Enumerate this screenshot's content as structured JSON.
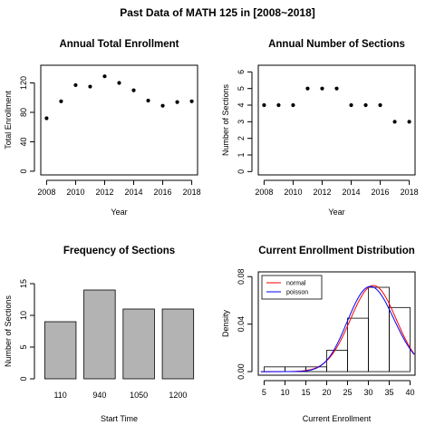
{
  "figure": {
    "title": "Past Data of MATH 125 in [2008~2018]"
  },
  "chart_data": [
    {
      "type": "scatter",
      "title": "Annual Total Enrollment",
      "xlabel": "Year",
      "ylabel": "Total Enrollment",
      "x": [
        2008,
        2009,
        2010,
        2011,
        2012,
        2013,
        2014,
        2015,
        2016,
        2017,
        2018
      ],
      "y": [
        72,
        95,
        117,
        115,
        129,
        120,
        110,
        96,
        89,
        94,
        95
      ],
      "xlim": [
        2007.6,
        2018.4
      ],
      "ylim": [
        -5,
        144
      ],
      "xticks": [
        2008,
        2010,
        2012,
        2014,
        2016,
        2018
      ],
      "yticks": [
        0,
        40,
        80,
        120
      ],
      "ytick_labels": [
        "0",
        "40",
        "80",
        "120"
      ],
      "grid": false
    },
    {
      "type": "scatter",
      "title": "Annual Number of Sections",
      "xlabel": "Year",
      "ylabel": "Number of Sections",
      "x": [
        2008,
        2009,
        2010,
        2011,
        2012,
        2013,
        2014,
        2015,
        2016,
        2017,
        2018
      ],
      "y": [
        4,
        4,
        4,
        5,
        5,
        5,
        4,
        4,
        4,
        3,
        3
      ],
      "xlim": [
        2007.6,
        2018.4
      ],
      "ylim": [
        -0.2,
        6.4
      ],
      "xticks": [
        2008,
        2010,
        2012,
        2014,
        2016,
        2018
      ],
      "yticks": [
        0,
        1,
        2,
        3,
        4,
        5,
        6
      ],
      "ytick_labels": [
        "0",
        "1",
        "2",
        "3",
        "4",
        "5",
        "6"
      ],
      "grid": false
    },
    {
      "type": "bar",
      "title": "Frequency of Sections",
      "xlabel": "Start Time",
      "ylabel": "Number of Sections",
      "categories": [
        "110",
        "940",
        "1050",
        "1200"
      ],
      "values": [
        9,
        14,
        11,
        11
      ],
      "ylim": [
        0,
        15
      ],
      "yticks": [
        0,
        5,
        10,
        15
      ],
      "ytick_labels": [
        "0",
        "5",
        "10",
        "15"
      ],
      "bar_color": "#b3b3b3",
      "grid": false
    },
    {
      "type": "histogram",
      "title": "Current Enrollment Distribution",
      "xlabel": "Current Enrollment",
      "ylabel": "Density",
      "bins": [
        [
          5,
          10
        ],
        [
          10,
          15
        ],
        [
          15,
          20
        ],
        [
          20,
          25
        ],
        [
          25,
          30
        ],
        [
          30,
          35
        ],
        [
          35,
          40
        ]
      ],
      "density": [
        0.004,
        0.004,
        0.004,
        0.018,
        0.045,
        0.071,
        0.054
      ],
      "xlim": [
        3.6,
        41.2
      ],
      "ylim": [
        -0.003,
        0.084
      ],
      "xticks": [
        5,
        10,
        15,
        20,
        25,
        30,
        35,
        40
      ],
      "xtick_labels": [
        "5",
        "10",
        "15",
        "20",
        "25",
        "30",
        "35",
        "40"
      ],
      "yticks": [
        0.0,
        0.04,
        0.08
      ],
      "ytick_labels": [
        "0.00",
        "0.04",
        "0.08"
      ],
      "curves": [
        {
          "name": "normal",
          "color": "#ff0000",
          "mean": 31.2,
          "sd": 5.5
        },
        {
          "name": "poisson",
          "color": "#0000ff",
          "lambda": 31
        }
      ],
      "legend": "top-left",
      "grid": false
    }
  ]
}
